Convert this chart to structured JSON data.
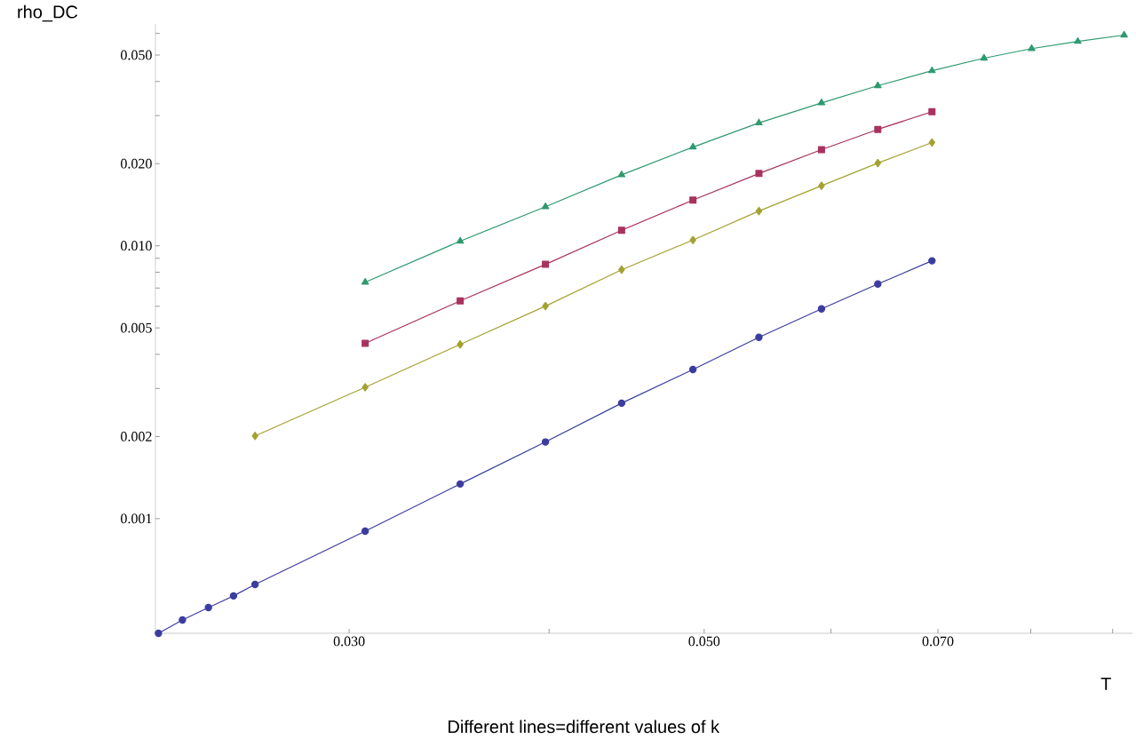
{
  "chart_data": {
    "type": "line",
    "xlabel": "T",
    "ylabel": "rho_DC",
    "annotations": [
      "Different lines=different values of k"
    ],
    "log": "xy",
    "line_style": "solid",
    "xlim": [
      0.0227,
      0.0926
    ],
    "ylim": [
      0.00038,
      0.065
    ],
    "xticks": [
      {
        "value": 0.03,
        "label": "0.030"
      },
      {
        "value": 0.04,
        "label": null
      },
      {
        "value": 0.05,
        "label": "0.050"
      },
      {
        "value": 0.06,
        "label": null
      },
      {
        "value": 0.07,
        "label": "0.070"
      },
      {
        "value": 0.08,
        "label": null
      },
      {
        "value": 0.09,
        "label": null
      }
    ],
    "yticks": [
      {
        "value": 0.001,
        "label": "0.001"
      },
      {
        "value": 0.002,
        "label": "0.002"
      },
      {
        "value": 0.003,
        "label": null
      },
      {
        "value": 0.004,
        "label": null
      },
      {
        "value": 0.005,
        "label": "0.005"
      },
      {
        "value": 0.006,
        "label": null
      },
      {
        "value": 0.007,
        "label": null
      },
      {
        "value": 0.008,
        "label": null
      },
      {
        "value": 0.009,
        "label": null
      },
      {
        "value": 0.01,
        "label": "0.010"
      },
      {
        "value": 0.02,
        "label": "0.020"
      },
      {
        "value": 0.03,
        "label": null
      },
      {
        "value": 0.04,
        "label": null
      },
      {
        "value": 0.05,
        "label": "0.050"
      },
      {
        "value": 0.06,
        "label": null
      }
    ],
    "series": [
      {
        "color": "#3c3ca0",
        "marker": "circle",
        "x": [
          0.0228,
          0.0236,
          0.0245,
          0.0254,
          0.0262,
          0.0307,
          0.0352,
          0.0398,
          0.0444,
          0.0492,
          0.0541,
          0.0592,
          0.0642,
          0.0694
        ],
        "values": [
          0.00038,
          0.000425,
          0.000472,
          0.000521,
          0.000574,
          0.0009,
          0.00134,
          0.00191,
          0.00265,
          0.00352,
          0.00462,
          0.00587,
          0.00724,
          0.00881
        ]
      },
      {
        "color": "#a8325f",
        "marker": "square",
        "x": [
          0.0307,
          0.0352,
          0.0398,
          0.0444,
          0.0492,
          0.0541,
          0.0592,
          0.0642,
          0.0694
        ],
        "values": [
          0.00439,
          0.00628,
          0.00855,
          0.0114,
          0.0147,
          0.0184,
          0.0225,
          0.0267,
          0.031
        ]
      },
      {
        "color": "#a3a232",
        "marker": "diamond",
        "x": [
          0.0262,
          0.0307,
          0.0352,
          0.0398,
          0.0444,
          0.0492,
          0.0541,
          0.0592,
          0.0642,
          0.0694
        ],
        "values": [
          0.00201,
          0.00303,
          0.00435,
          0.00601,
          0.00817,
          0.0105,
          0.0134,
          0.0166,
          0.0201,
          0.0239
        ]
      },
      {
        "color": "#2e9a6e",
        "marker": "triangle",
        "x": [
          0.0307,
          0.0352,
          0.0398,
          0.0444,
          0.0492,
          0.0541,
          0.0592,
          0.0642,
          0.0694,
          0.0748,
          0.0801,
          0.0856,
          0.0915
        ],
        "values": [
          0.00735,
          0.0104,
          0.0139,
          0.0182,
          0.023,
          0.0282,
          0.0334,
          0.0386,
          0.0438,
          0.0487,
          0.0528,
          0.0561,
          0.0592
        ]
      }
    ]
  }
}
